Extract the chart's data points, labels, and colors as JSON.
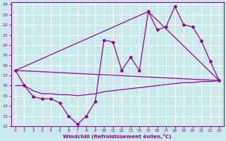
{
  "xlabel": "Windchill (Refroidissement éolien,°C)",
  "xlim": [
    -0.5,
    23.5
  ],
  "ylim": [
    12,
    24.2
  ],
  "xticks": [
    0,
    1,
    2,
    3,
    4,
    5,
    6,
    7,
    8,
    9,
    10,
    11,
    12,
    13,
    14,
    15,
    16,
    17,
    18,
    19,
    20,
    21,
    22,
    23
  ],
  "yticks": [
    12,
    13,
    14,
    15,
    16,
    17,
    18,
    19,
    20,
    21,
    22,
    23,
    24
  ],
  "bg_color": "#c9eaea",
  "line_color": "#990099",
  "grid_color": "#aadddd",
  "line1_x": [
    0,
    1,
    2,
    3,
    4,
    5,
    6,
    7,
    8,
    9,
    10,
    11,
    12,
    13,
    14,
    15,
    16,
    17,
    18,
    19,
    20,
    21,
    22,
    23
  ],
  "line1_y": [
    17.5,
    16.0,
    14.9,
    14.7,
    14.7,
    14.3,
    13.0,
    12.2,
    13.0,
    14.4,
    20.5,
    20.3,
    17.5,
    18.8,
    17.5,
    23.3,
    21.5,
    21.8,
    23.8,
    22.0,
    21.8,
    20.4,
    18.4,
    16.5
  ],
  "line2_x": [
    0,
    1,
    2,
    3,
    4,
    5,
    6,
    7,
    8,
    9,
    10,
    11,
    12,
    13,
    14,
    15,
    16,
    17,
    18,
    19,
    20,
    21,
    22,
    23
  ],
  "line2_y": [
    16.0,
    16.0,
    15.5,
    15.2,
    15.2,
    15.1,
    15.1,
    15.0,
    15.1,
    15.2,
    15.4,
    15.5,
    15.6,
    15.7,
    15.8,
    15.9,
    16.0,
    16.1,
    16.2,
    16.3,
    16.3,
    16.4,
    16.4,
    16.5
  ],
  "line3_x": [
    0,
    23
  ],
  "line3_y": [
    17.5,
    16.5
  ],
  "line4_x": [
    0,
    15,
    23
  ],
  "line4_y": [
    17.5,
    23.3,
    16.5
  ]
}
